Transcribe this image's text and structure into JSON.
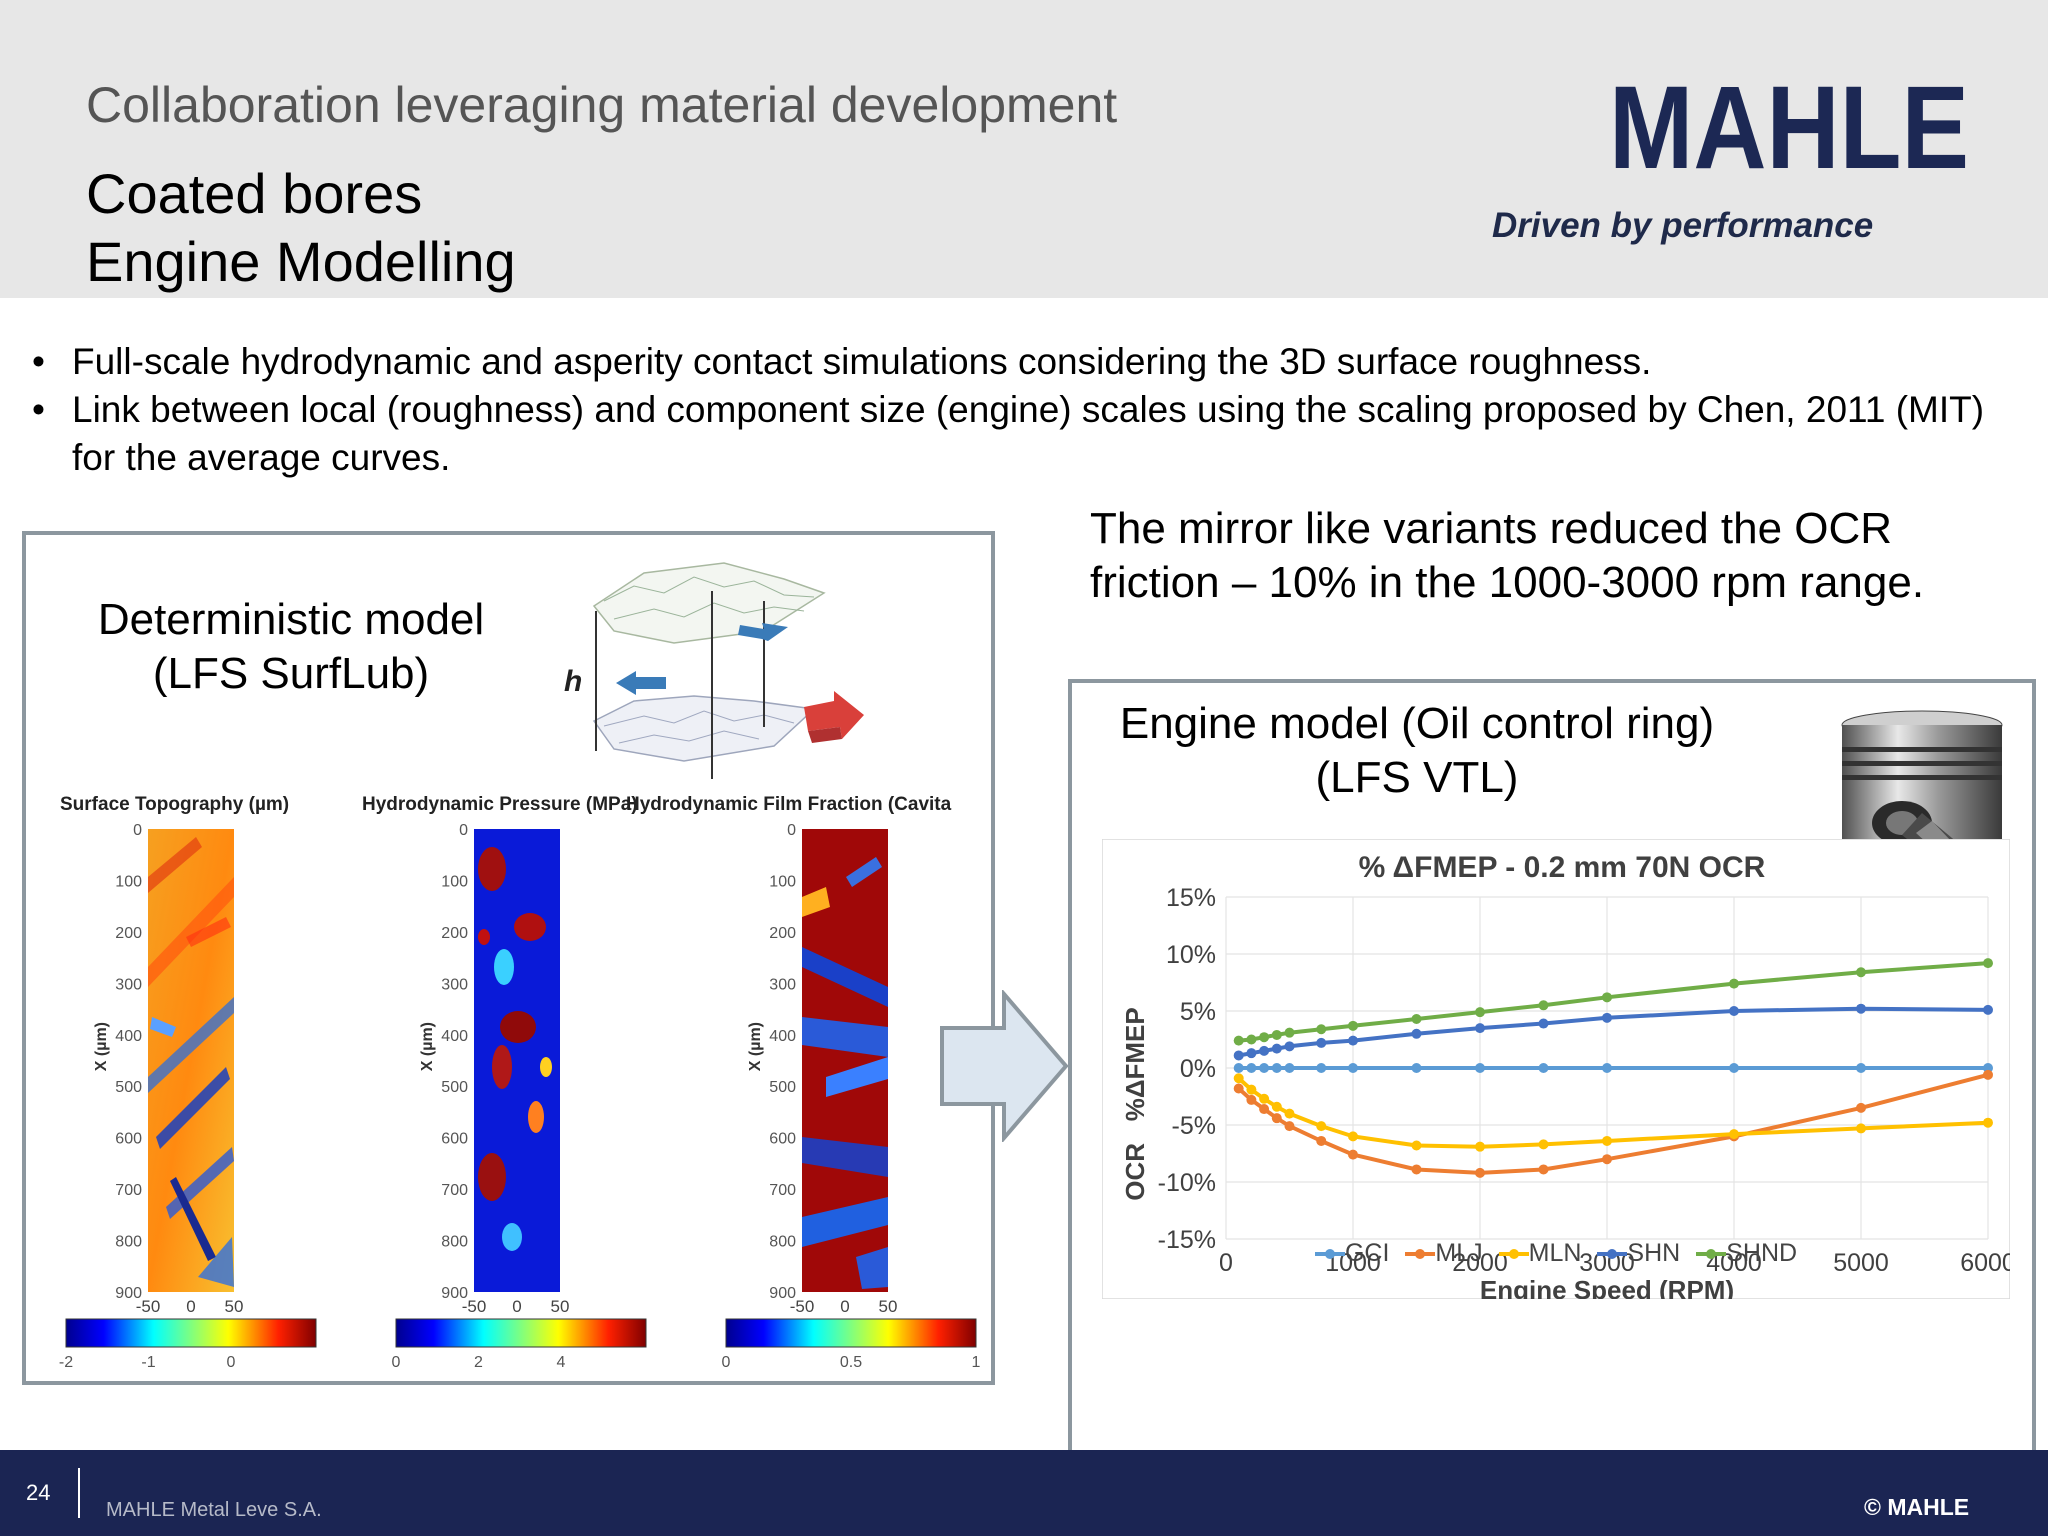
{
  "header": {
    "subtitle": "Collaboration leveraging material development",
    "title_line1": "Coated bores",
    "title_line2": "Engine Modelling",
    "logo_text": "MAHLE",
    "tagline": "Driven by performance"
  },
  "bullets": [
    "Full-scale hydrodynamic and asperity contact simulations considering the 3D surface roughness.",
    "Link between local (roughness) and component size (engine) scales using the scaling proposed by Chen, 2011 (MIT) for the average curves."
  ],
  "claim": {
    "line1": "The mirror like variants reduced the OCR",
    "line2": "friction – 10% in the 1000-3000 rpm range."
  },
  "left_box": {
    "label_line1": "Deterministic model",
    "label_line2": "(LFS SurfLub)",
    "panels": [
      {
        "title": "Surface Topography (µm)",
        "colorbar_ticks": [
          "-2",
          "-1",
          "0"
        ]
      },
      {
        "title": "Hydrodynamic Pressure (MPa)",
        "colorbar_ticks": [
          "0",
          "2",
          "4"
        ]
      },
      {
        "title": "Hydrodynamic Film Fraction (Cavita",
        "colorbar_ticks": [
          "0",
          "0.5",
          "1"
        ]
      }
    ],
    "y_ticks": [
      "0",
      "100",
      "200",
      "300",
      "400",
      "500",
      "600",
      "700",
      "800",
      "900"
    ],
    "x_ticks": [
      "-50",
      "0",
      "50"
    ],
    "y_axis_label": "X (µm)"
  },
  "right_box": {
    "label_line1": "Engine model (Oil control ring)",
    "label_line2": "(LFS VTL)"
  },
  "chart_data": {
    "type": "line",
    "title": "% ΔFMEP - 0.2 mm 70N OCR",
    "xlabel": "Engine Speed (RPM)",
    "ylabel": "OCR   %ΔFMEP",
    "xlim": [
      0,
      6000
    ],
    "ylim": [
      -15,
      15
    ],
    "x_ticks": [
      "0",
      "1000",
      "2000",
      "3000",
      "4000",
      "5000",
      "6000"
    ],
    "y_ticks": [
      "15%",
      "10%",
      "5%",
      "0%",
      "-5%",
      "-10%",
      "-15%"
    ],
    "grid": true,
    "legend": "bottom",
    "x": [
      100,
      200,
      300,
      400,
      500,
      750,
      1000,
      1500,
      2000,
      2500,
      3000,
      4000,
      5000,
      6000
    ],
    "series": [
      {
        "name": "GCI",
        "color": "#5b9bd5",
        "values": [
          0,
          0,
          0,
          0,
          0,
          0,
          0,
          0,
          0,
          0,
          0,
          0,
          0,
          0
        ]
      },
      {
        "name": "MLJ",
        "color": "#ed7d31",
        "values": [
          -1.8,
          -2.8,
          -3.6,
          -4.4,
          -5.1,
          -6.4,
          -7.6,
          -8.9,
          -9.2,
          -8.9,
          -8.0,
          -6.0,
          -3.5,
          -0.6
        ]
      },
      {
        "name": "MLN",
        "color": "#ffc000",
        "values": [
          -0.9,
          -1.9,
          -2.7,
          -3.4,
          -4.0,
          -5.1,
          -6.0,
          -6.8,
          -6.9,
          -6.7,
          -6.4,
          -5.8,
          -5.3,
          -4.8
        ]
      },
      {
        "name": "SHN",
        "color": "#4472c4",
        "values": [
          1.1,
          1.3,
          1.5,
          1.7,
          1.9,
          2.2,
          2.4,
          3.0,
          3.5,
          3.9,
          4.4,
          5.0,
          5.2,
          5.1
        ]
      },
      {
        "name": "SHND",
        "color": "#70ad47",
        "values": [
          2.4,
          2.5,
          2.7,
          2.9,
          3.1,
          3.4,
          3.7,
          4.3,
          4.9,
          5.5,
          6.2,
          7.4,
          8.4,
          9.2
        ]
      }
    ]
  },
  "footer": {
    "page_number": "24",
    "company": "MAHLE Metal Leve S.A.",
    "copyright": "© MAHLE"
  }
}
